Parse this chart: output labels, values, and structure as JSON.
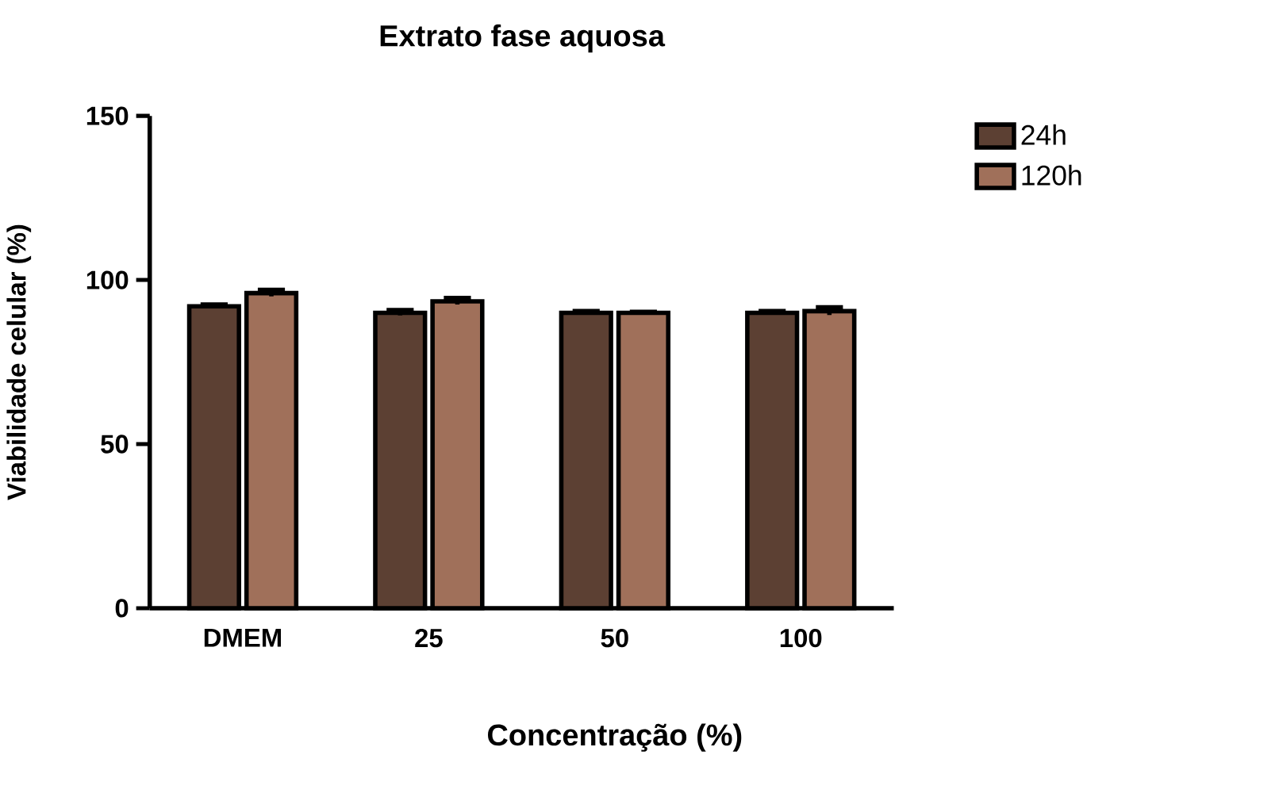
{
  "chart_data": {
    "type": "bar",
    "title": "Extrato fase aquosa",
    "xlabel": "Concentração (%)",
    "ylabel": "Viabilidade celular (%)",
    "categories": [
      "DMEM",
      "25",
      "50",
      "100"
    ],
    "series": [
      {
        "name": "24h",
        "color": "#5c4033",
        "values": [
          92,
          90,
          90,
          90
        ],
        "errors": [
          0.5,
          0.8,
          0.5,
          0.5
        ]
      },
      {
        "name": "120h",
        "color": "#a0705a",
        "values": [
          96,
          93.5,
          90,
          90.5
        ],
        "errors": [
          1,
          1,
          0.3,
          1.2
        ]
      }
    ],
    "ylim": [
      0,
      150
    ],
    "yticks": [
      0,
      50,
      100,
      150
    ],
    "legend": "top right",
    "grid": false
  }
}
